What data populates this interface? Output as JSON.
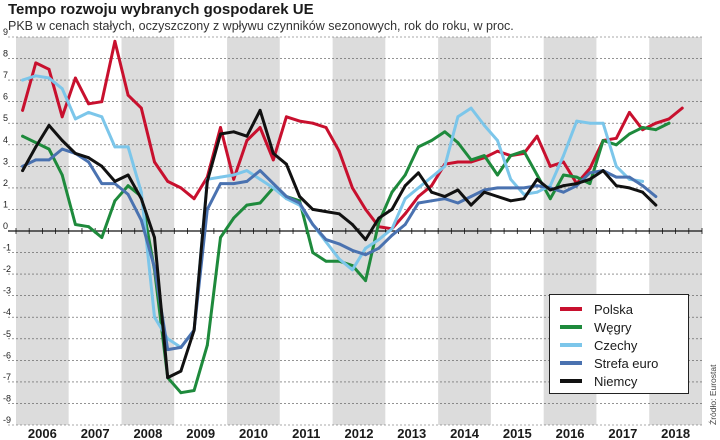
{
  "title": "Tempo rozwoju wybranych gospodarek UE",
  "subtitle": "PKB w cenach stałych, oczyszczony z wpływu czynników sezonowych, rok do roku, w proc.",
  "source": "Źródło: Eurostat",
  "chart_data": {
    "type": "line",
    "title": "Tempo rozwoju wybranych gospodarek UE",
    "subtitle": "PKB w cenach stałych, oczyszczony z wpływu czynników sezonowych, rok do roku, w proc.",
    "xlabel": "",
    "ylabel": "",
    "x_unit": "quarter",
    "years": [
      "2006",
      "2007",
      "2008",
      "2009",
      "2010",
      "2011",
      "2012",
      "2013",
      "2014",
      "2015",
      "2016",
      "2017",
      "2018"
    ],
    "ylim": [
      -9,
      9
    ],
    "yticks": [
      "9",
      "8",
      "7",
      "6",
      "5",
      "4",
      "3",
      "2",
      "1",
      "0",
      "-1",
      "-2",
      "-3",
      "-4",
      "-5",
      "-6",
      "-7",
      "-8",
      "-9"
    ],
    "grid": "alternating-year-bands",
    "legend_position": "bottom-right",
    "series": [
      {
        "name": "Polska",
        "color": "#c8102e",
        "values": [
          5.6,
          7.8,
          7.5,
          5.3,
          7.1,
          5.9,
          6.0,
          8.8,
          6.3,
          5.7,
          3.2,
          2.3,
          2.0,
          1.5,
          2.5,
          4.8,
          2.4,
          4.2,
          4.8,
          3.3,
          5.3,
          5.1,
          5.0,
          4.8,
          3.7,
          2.0,
          1.0,
          0.2,
          0.1,
          0.8,
          1.6,
          2.1,
          3.1,
          3.2,
          3.2,
          3.4,
          3.7,
          3.5,
          3.6,
          4.4,
          3.0,
          3.2,
          2.2,
          2.9,
          4.2,
          4.3,
          5.5,
          4.7,
          5.0,
          5.2,
          5.7
        ]
      },
      {
        "name": "Węgry",
        "color": "#1e8a3c",
        "values": [
          4.4,
          4.1,
          3.8,
          2.6,
          0.3,
          0.2,
          -0.3,
          1.4,
          2.1,
          1.6,
          -1.8,
          -6.8,
          -7.5,
          -7.4,
          -5.3,
          -0.3,
          0.6,
          1.2,
          1.3,
          2.0,
          1.6,
          1.4,
          -1.0,
          -1.4,
          -1.4,
          -1.6,
          -2.3,
          0.4,
          1.8,
          2.6,
          3.9,
          4.2,
          4.6,
          4.1,
          3.3,
          3.5,
          2.6,
          3.5,
          3.7,
          2.6,
          1.5,
          2.6,
          2.5,
          2.2,
          4.2,
          4.0,
          4.5,
          4.8,
          4.7,
          5.0
        ]
      },
      {
        "name": "Czechy",
        "color": "#7cc6ea",
        "values": [
          7.0,
          7.2,
          7.1,
          6.6,
          5.2,
          5.5,
          5.3,
          3.9,
          3.9,
          1.8,
          -4.0,
          -5.0,
          -5.4,
          -4.6,
          2.4,
          2.5,
          2.6,
          2.8,
          2.4,
          2.0,
          1.5,
          1.2,
          0.3,
          -0.5,
          -1.3,
          -1.8,
          -0.8,
          -0.4,
          0.1,
          1.5,
          2.0,
          2.5,
          3.0,
          5.3,
          5.7,
          4.9,
          4.2,
          2.4,
          1.7,
          1.8,
          2.1,
          3.5,
          5.1,
          5.0,
          5.0,
          3.0,
          2.4,
          2.3
        ]
      },
      {
        "name": "Strefa euro",
        "color": "#4a72b0",
        "values": [
          3.0,
          3.3,
          3.3,
          3.8,
          3.6,
          3.2,
          2.2,
          2.2,
          1.7,
          0.5,
          -1.7,
          -5.5,
          -5.4,
          -4.6,
          1.0,
          2.2,
          2.2,
          2.3,
          2.8,
          2.2,
          1.6,
          1.3,
          0.3,
          -0.4,
          -0.6,
          -0.9,
          -1.1,
          -0.8,
          -0.2,
          0.3,
          1.3,
          1.4,
          1.5,
          1.3,
          1.6,
          1.9,
          2.0,
          2.0,
          2.0,
          2.1,
          2.0,
          1.8,
          2.1,
          2.7,
          2.8,
          2.5,
          2.5,
          2.1,
          1.6
        ]
      },
      {
        "name": "Niemcy",
        "color": "#111111",
        "values": [
          2.8,
          3.9,
          4.9,
          4.2,
          3.6,
          3.4,
          3.0,
          2.3,
          2.6,
          1.5,
          -0.3,
          -6.8,
          -6.5,
          -4.6,
          2.3,
          4.5,
          4.6,
          4.4,
          5.6,
          3.6,
          3.1,
          1.6,
          1.0,
          0.9,
          0.8,
          0.3,
          -0.4,
          0.6,
          1.0,
          2.1,
          2.7,
          1.8,
          1.6,
          1.9,
          1.2,
          1.8,
          1.6,
          1.4,
          1.5,
          2.4,
          1.9,
          2.1,
          2.2,
          2.4,
          2.8,
          2.1,
          2.0,
          1.8,
          1.2
        ]
      }
    ]
  }
}
